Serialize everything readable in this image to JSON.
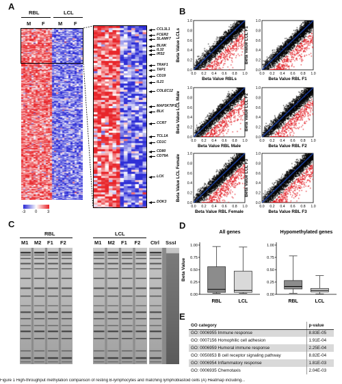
{
  "panels": {
    "a": "A",
    "b": "B",
    "c": "C",
    "d": "D",
    "e": "E"
  },
  "heatmap": {
    "group_left": "RBL",
    "group_right": "LCL",
    "sub_labels": [
      "M",
      "F",
      "M",
      "F"
    ],
    "scale_ticks": [
      "-3",
      "0",
      "3"
    ],
    "genes": [
      "CCL3L1",
      "FCER2",
      "SLAMF7",
      "BLNK",
      "IL32",
      "IRS2",
      "TRAF1",
      "TAP1",
      "CD19",
      "IL21",
      "COLEC12",
      "MAP3K7IP1",
      "BLK",
      "CCR7",
      "TCL1A",
      "CD1C",
      "CD80",
      "CD79A",
      "LCK",
      "DOK3"
    ],
    "colors": {
      "high": "#e8262b",
      "mid": "#ffffff",
      "low": "#2f2fd6"
    }
  },
  "scatter": {
    "plots": [
      {
        "xlabel": "Beta Value RBLs",
        "ylabel": "Beta Value LCLs"
      },
      {
        "xlabel": "Beta Value RBL F1",
        "ylabel": "Beta Value LCL F1"
      },
      {
        "xlabel": "Beta Value RBL Male",
        "ylabel": "Beta Value LCL Male"
      },
      {
        "xlabel": "Beta Value RBL F2",
        "ylabel": "Beta Value LCL F2"
      },
      {
        "xlabel": "Beta Value RBL Female",
        "ylabel": "Beta Value LCL Female"
      },
      {
        "xlabel": "Beta Value RBL F3",
        "ylabel": "Beta Value LCL F3"
      }
    ],
    "ticks": [
      "0.0",
      "0.2",
      "0.4",
      "0.6",
      "0.8",
      "1.0"
    ],
    "colors": {
      "points": "#000000",
      "hypo": "#e0141b",
      "diag": "#1f4fd6"
    }
  },
  "gel": {
    "group_left": "RBL",
    "group_right": "LCL",
    "lanes_left": [
      "M1",
      "M2",
      "F1",
      "F2"
    ],
    "lanes_right": [
      "M1",
      "M2",
      "F1",
      "F2"
    ],
    "controls": [
      "Ctrl",
      "SssI"
    ]
  },
  "chart_data": [
    {
      "type": "box",
      "title": "All genes",
      "ylabel": "Beta Value",
      "categories": [
        "RBL",
        "LCL"
      ],
      "ylim": [
        0,
        1.0
      ],
      "yticks": [
        "0.00",
        "0.25",
        "0.50",
        "0.75",
        "1.00"
      ],
      "boxes": [
        {
          "name": "RBL",
          "min": 0.02,
          "q1": 0.04,
          "median": 0.1,
          "q3": 0.56,
          "max": 0.97,
          "color": "#8c8c8c"
        },
        {
          "name": "LCL",
          "min": 0.02,
          "q1": 0.04,
          "median": 0.08,
          "q3": 0.47,
          "max": 0.96,
          "color": "#d9d9d9"
        }
      ]
    },
    {
      "type": "box",
      "title": "Hypomethylated genes",
      "ylabel": "",
      "categories": [
        "RBL",
        "LCL"
      ],
      "ylim": [
        0,
        1.0
      ],
      "yticks": [
        "0.00",
        "0.25",
        "0.50",
        "0.75",
        "1.00"
      ],
      "boxes": [
        {
          "name": "RBL",
          "min": 0.02,
          "q1": 0.11,
          "median": 0.16,
          "q3": 0.28,
          "max": 0.78,
          "color": "#8c8c8c"
        },
        {
          "name": "LCL",
          "min": 0.01,
          "q1": 0.05,
          "median": 0.08,
          "q3": 0.12,
          "max": 0.38,
          "color": "#d9d9d9"
        }
      ]
    }
  ],
  "go_table": {
    "headers": [
      "GO category",
      "p-value"
    ],
    "rows": [
      {
        "category": "GO: 0006955 Immune response",
        "p": "8.83E-05"
      },
      {
        "category": "GO: 0007156 Homophilic cell adhesion",
        "p": "1.91E-04"
      },
      {
        "category": "GO: 0006959 Humoral immune response",
        "p": "2.25E-04"
      },
      {
        "category": "GO: 0050853 B cell receptor signaling pathway",
        "p": "8.82E-04"
      },
      {
        "category": "GO: 0006954 Inflammatory response",
        "p": "1.81E-03"
      },
      {
        "category": "GO: 0006935 Chemotaxis",
        "p": "2.04E-03"
      }
    ]
  },
  "caption": "Figure 1 High-throughput methylation comparison of resting B-lymphocytes and matching lymphoblastoid cells (A) Heatmap including..."
}
